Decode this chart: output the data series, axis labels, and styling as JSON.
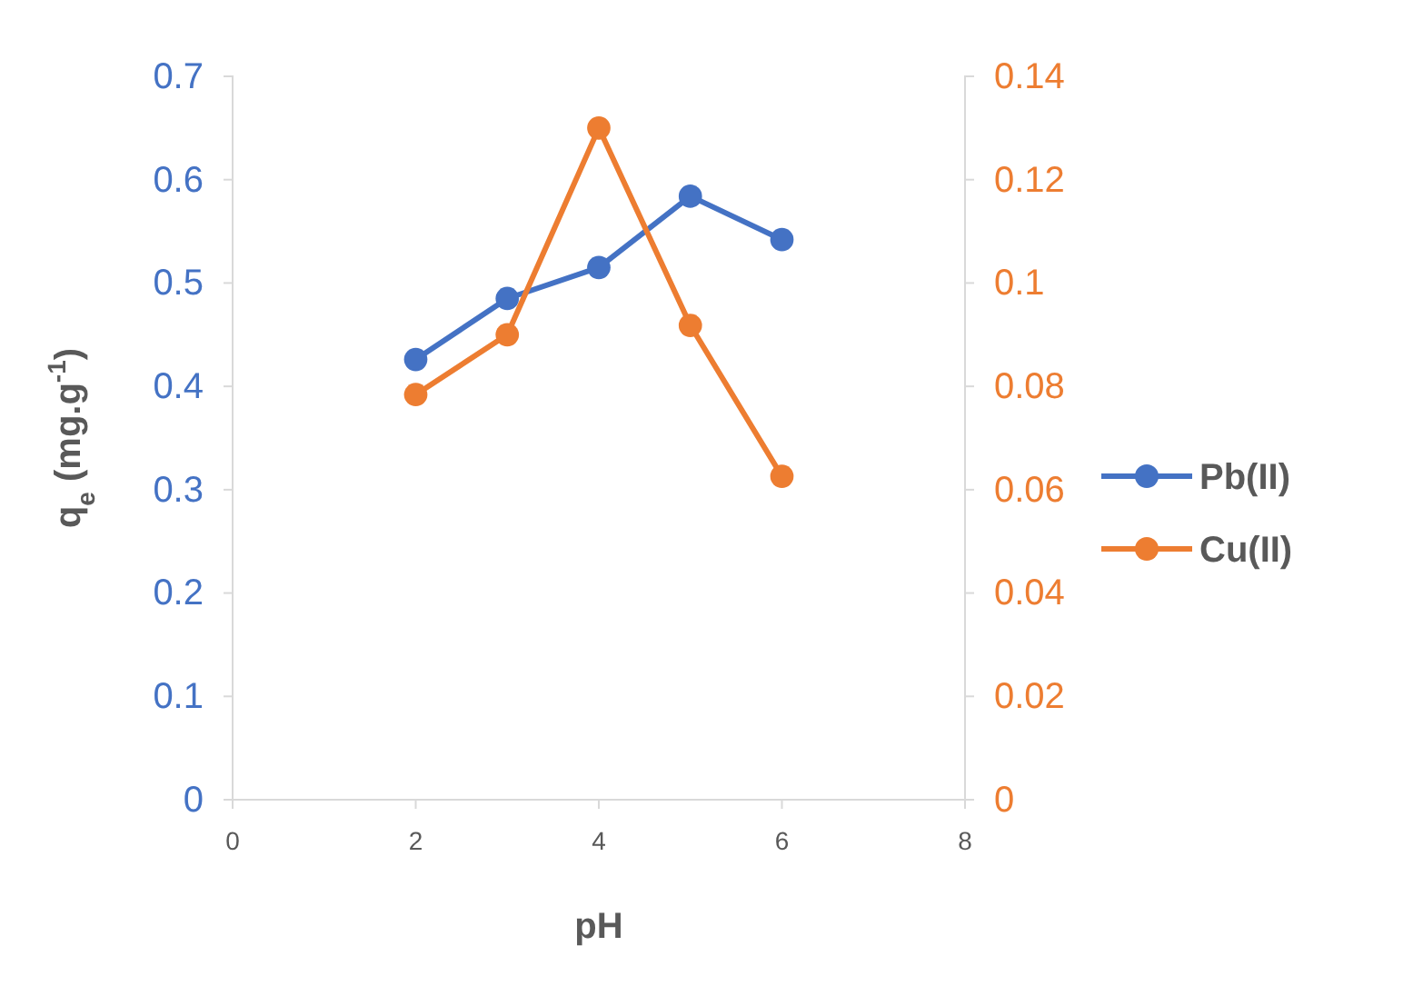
{
  "chart_data": {
    "type": "line",
    "xlabel": "pH",
    "ylabel": "q$_{e}$ (mg.g$^{-1}$)",
    "x": [
      2,
      3,
      4,
      5,
      6
    ],
    "series": [
      {
        "name": "Pb(II)",
        "color": "#4472c4",
        "values": [
          0.426,
          0.485,
          0.515,
          0.584,
          0.542
        ]
      },
      {
        "name": "Cu(II)",
        "color": "#ed7d31",
        "axis": "y2",
        "values": [
          0.0784,
          0.09,
          0.13,
          0.0918,
          0.0626
        ]
      }
    ],
    "xlim": [
      0,
      8
    ],
    "xticks": [
      0,
      2,
      4,
      6,
      8
    ],
    "ylim": [
      0,
      0.7
    ],
    "yticks": [
      0,
      0.1,
      0.2,
      0.3,
      0.4,
      0.5,
      0.6,
      0.7
    ],
    "y2lim": [
      0,
      0.14
    ],
    "y2ticks": [
      0,
      0.02,
      0.04,
      0.06,
      0.08,
      0.1,
      0.12,
      0.14
    ],
    "marker": "circle",
    "line_style": "solid",
    "legend": "right",
    "grid": false
  }
}
